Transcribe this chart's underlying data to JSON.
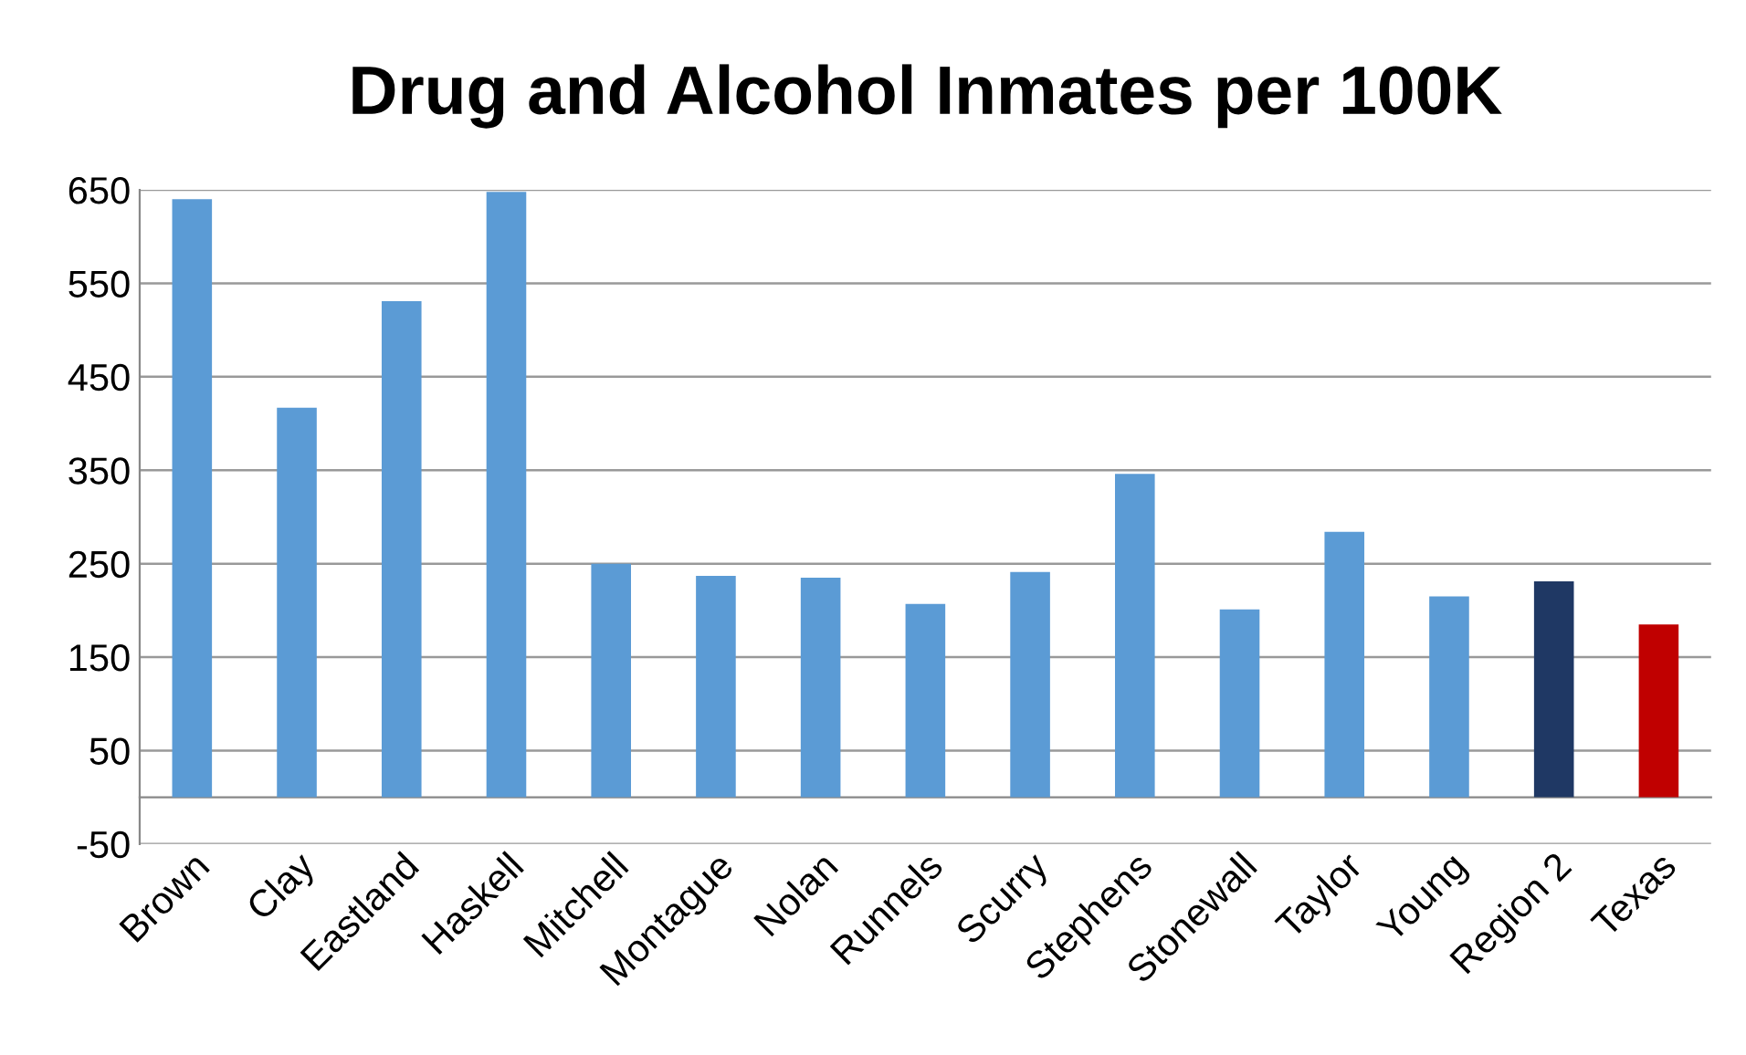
{
  "chart_data": {
    "type": "bar",
    "title": "Drug and Alcohol Inmates per 100K",
    "categories": [
      "Brown",
      "Clay",
      "Eastland",
      "Haskell",
      "Mitchell",
      "Montague",
      "Nolan",
      "Runnels",
      "Scurry",
      "Stephens",
      "Stonewall",
      "Taylor",
      "Young",
      "Region 2",
      "Texas"
    ],
    "values": [
      640,
      417,
      531,
      648,
      250,
      237,
      235,
      207,
      241,
      346,
      201,
      284,
      215,
      231,
      185
    ],
    "colors": [
      "#5b9bd5",
      "#5b9bd5",
      "#5b9bd5",
      "#5b9bd5",
      "#5b9bd5",
      "#5b9bd5",
      "#5b9bd5",
      "#5b9bd5",
      "#5b9bd5",
      "#5b9bd5",
      "#5b9bd5",
      "#5b9bd5",
      "#5b9bd5",
      "#1f3864",
      "#c00000"
    ],
    "ylim": [
      -50,
      650
    ],
    "yticks": [
      -50,
      50,
      150,
      250,
      350,
      450,
      550,
      650
    ],
    "grid": "y",
    "legend": false
  }
}
